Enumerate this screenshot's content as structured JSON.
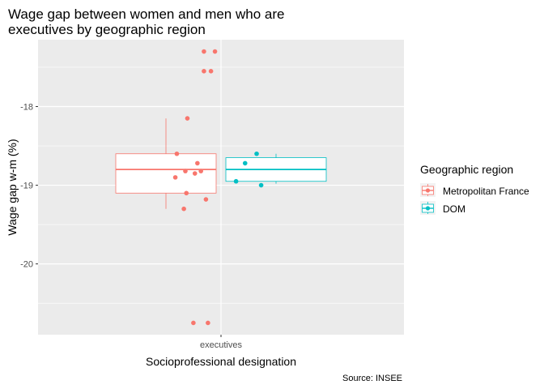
{
  "chart_data": {
    "type": "boxplot",
    "title_lines": [
      "Wage gap between women and men who are",
      "executives by geographic region"
    ],
    "xlabel": "Socioprofessional designation",
    "ylabel": "Wage gap w-m (%)",
    "caption": "Source: INSEE",
    "categories": [
      "executives"
    ],
    "ylim": [
      -20.9,
      -17.15
    ],
    "yticks": [
      -20,
      -19,
      -18
    ],
    "ytick_labels": [
      "-20",
      "-19",
      "-18"
    ],
    "panel_background": "#ebebeb",
    "grid": true,
    "legend": {
      "title": "Geographic region",
      "position": "right",
      "entries": [
        "Metropolitan France",
        "DOM"
      ]
    },
    "series": [
      {
        "name": "Metropolitan France",
        "color": "#f8766d",
        "box": {
          "q1": -19.1,
          "median": -18.8,
          "q3": -18.6,
          "whisker_low": -19.3,
          "whisker_high": -18.15
        },
        "points": [
          {
            "x": -0.34,
            "y": -17.3
          },
          {
            "x": -0.12,
            "y": -17.3
          },
          {
            "x": -0.34,
            "y": -17.55
          },
          {
            "x": -0.2,
            "y": -17.55
          },
          {
            "x": -0.67,
            "y": -18.15
          },
          {
            "x": -0.88,
            "y": -18.6
          },
          {
            "x": -0.47,
            "y": -18.72
          },
          {
            "x": -0.71,
            "y": -18.82
          },
          {
            "x": -0.4,
            "y": -18.82
          },
          {
            "x": -0.52,
            "y": -18.85
          },
          {
            "x": -0.91,
            "y": -18.9
          },
          {
            "x": -0.69,
            "y": -19.1
          },
          {
            "x": -0.3,
            "y": -19.18
          },
          {
            "x": -0.74,
            "y": -19.3
          },
          {
            "x": -0.55,
            "y": -20.75
          },
          {
            "x": -0.26,
            "y": -20.75
          }
        ]
      },
      {
        "name": "DOM",
        "color": "#00bfc4",
        "box": {
          "q1": -18.95,
          "median": -18.8,
          "q3": -18.65,
          "whisker_low": -18.98,
          "whisker_high": -18.6
        },
        "points": [
          {
            "x": 0.71,
            "y": -18.6
          },
          {
            "x": 0.48,
            "y": -18.72
          },
          {
            "x": 0.3,
            "y": -18.95
          },
          {
            "x": 0.8,
            "y": -19.0
          }
        ]
      }
    ]
  }
}
